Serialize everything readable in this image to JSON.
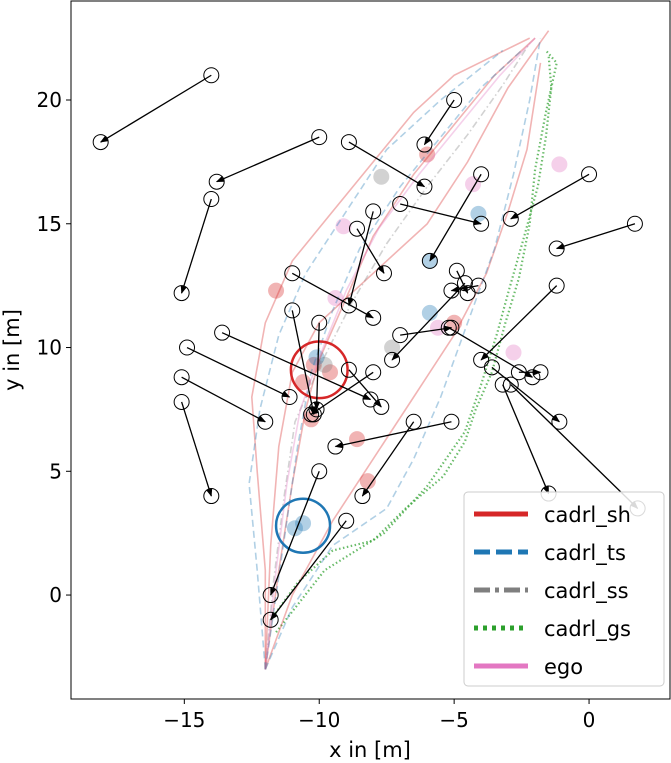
{
  "chart_data": {
    "type": "scatter",
    "xlabel": "x in [m]",
    "ylabel": "y in [m]",
    "xlim": [
      -19.2,
      3.0
    ],
    "ylim": [
      -4.2,
      24.0
    ],
    "xticks": [
      -15,
      -10,
      -5,
      0
    ],
    "yticks": [
      0,
      5,
      10,
      15,
      20
    ],
    "grid": false,
    "legend": {
      "placement": "lower-right",
      "entries": [
        {
          "name": "cadrl_sh",
          "color": "#d62728",
          "style": "solid"
        },
        {
          "name": "cadrl_ts",
          "color": "#1f77b4",
          "style": "dashed"
        },
        {
          "name": "cadrl_ss",
          "color": "#7f7f7f",
          "style": "dashdot"
        },
        {
          "name": "cadrl_gs",
          "color": "#2ca02c",
          "style": "dotted"
        },
        {
          "name": "ego",
          "color": "#e377c2",
          "style": "solid"
        }
      ]
    },
    "agents": [
      {
        "from": [
          -14,
          21
        ],
        "to": [
          -18.1,
          18.3
        ]
      },
      {
        "from": [
          -10,
          18.5
        ],
        "to": [
          -13.8,
          16.7
        ]
      },
      {
        "from": [
          -8.9,
          18.3
        ],
        "to": [
          -6.1,
          16.5
        ]
      },
      {
        "from": [
          -5,
          20
        ],
        "to": [
          -6.1,
          18.2
        ]
      },
      {
        "from": [
          -14,
          16
        ],
        "to": [
          -15.1,
          12.2
        ]
      },
      {
        "from": [
          -7,
          15.8
        ],
        "to": [
          -4,
          15
        ]
      },
      {
        "from": [
          -4,
          17
        ],
        "to": [
          -5.9,
          13.5
        ]
      },
      {
        "from": [
          0,
          17
        ],
        "to": [
          -2.9,
          15.2
        ]
      },
      {
        "from": [
          1.7,
          15
        ],
        "to": [
          -1.2,
          14
        ]
      },
      {
        "from": [
          -8,
          15.5
        ],
        "to": [
          -8.9,
          11.7
        ]
      },
      {
        "from": [
          -8.6,
          14.8
        ],
        "to": [
          -7.6,
          13
        ]
      },
      {
        "from": [
          -11,
          13
        ],
        "to": [
          -8,
          11.2
        ]
      },
      {
        "from": [
          -4.9,
          13.1
        ],
        "to": [
          -4.5,
          12.2
        ]
      },
      {
        "from": [
          -4.1,
          12.5
        ],
        "to": [
          -5.1,
          12.3
        ]
      },
      {
        "from": [
          -11,
          11.5
        ],
        "to": [
          -10.2,
          7.3
        ]
      },
      {
        "from": [
          -13.6,
          10.6
        ],
        "to": [
          -8.1,
          7.9
        ]
      },
      {
        "from": [
          -14.9,
          10
        ],
        "to": [
          -11.1,
          8
        ]
      },
      {
        "from": [
          -10,
          11
        ],
        "to": [
          -10.1,
          7.5
        ]
      },
      {
        "from": [
          -7,
          10.5
        ],
        "to": [
          -5.1,
          10.8
        ]
      },
      {
        "from": [
          -1.2,
          12.5
        ],
        "to": [
          -4,
          9.5
        ]
      },
      {
        "from": [
          -15.1,
          8.8
        ],
        "to": [
          -12,
          7
        ]
      },
      {
        "from": [
          -15.1,
          7.8
        ],
        "to": [
          -14,
          4
        ]
      },
      {
        "from": [
          -8,
          9
        ],
        "to": [
          -10.3,
          7.3
        ]
      },
      {
        "from": [
          -4.6,
          12.6
        ],
        "to": [
          -7.3,
          9.5
        ]
      },
      {
        "from": [
          -5.2,
          10.8
        ],
        "to": [
          -2.1,
          8.8
        ]
      },
      {
        "from": [
          -3.6,
          9.2
        ],
        "to": [
          -1.1,
          7
        ]
      },
      {
        "from": [
          -2.6,
          9
        ],
        "to": [
          -1.8,
          9
        ]
      },
      {
        "from": [
          -8.9,
          9.1
        ],
        "to": [
          -7.7,
          7.6
        ]
      },
      {
        "from": [
          -2.9,
          8.5
        ],
        "to": [
          1.8,
          3.5
        ]
      },
      {
        "from": [
          -3.2,
          8.5
        ],
        "to": [
          -1.5,
          4.1
        ]
      },
      {
        "from": [
          -5.1,
          7
        ],
        "to": [
          -9.4,
          6
        ]
      },
      {
        "from": [
          -6.5,
          7
        ],
        "to": [
          -8.4,
          4
        ]
      },
      {
        "from": [
          -10,
          5
        ],
        "to": [
          -11.8,
          0
        ]
      },
      {
        "from": [
          -9,
          3
        ],
        "to": [
          -11.8,
          -1
        ]
      }
    ],
    "robot_circles": [
      {
        "x": -10,
        "y": 9.1,
        "r": 1.05,
        "color": "#d62728"
      },
      {
        "x": -10.6,
        "y": 2.8,
        "r": 1.0,
        "color": "#1f77b4"
      }
    ],
    "paths": [
      {
        "color": "#2ca02c",
        "style": "dotted",
        "points": [
          [
            -11.8,
            -1
          ],
          [
            -10.8,
            0.5
          ],
          [
            -9.5,
            1.8
          ],
          [
            -8,
            2.2
          ],
          [
            -6.8,
            3.5
          ],
          [
            -5.4,
            4.8
          ],
          [
            -4.6,
            6.2
          ],
          [
            -4.2,
            7.5
          ],
          [
            -3.6,
            9
          ],
          [
            -3.1,
            11
          ],
          [
            -2.6,
            12.8
          ],
          [
            -2.2,
            15
          ],
          [
            -2,
            17.2
          ],
          [
            -1.6,
            19.5
          ],
          [
            -1.2,
            21.5
          ],
          [
            -1.6,
            22
          ]
        ]
      },
      {
        "color": "#2ca02c",
        "style": "dotted",
        "points": [
          [
            -11.6,
            -1.5
          ],
          [
            -9.8,
            1
          ],
          [
            -7.6,
            2.5
          ],
          [
            -6,
            4.4
          ],
          [
            -4.6,
            6.6
          ],
          [
            -4,
            8.5
          ],
          [
            -3.4,
            10.6
          ],
          [
            -3,
            12.2
          ],
          [
            -2.4,
            14.5
          ],
          [
            -1.9,
            16.5
          ],
          [
            -1.6,
            18.5
          ],
          [
            -1.4,
            20.5
          ],
          [
            -1.5,
            21.8
          ]
        ]
      },
      {
        "color": "#d62728",
        "style": "solid",
        "points": [
          [
            -12,
            -3
          ],
          [
            -11.5,
            1
          ],
          [
            -11,
            4.5
          ],
          [
            -10.5,
            7.5
          ],
          [
            -10,
            9.5
          ],
          [
            -9,
            12
          ],
          [
            -8,
            14.5
          ],
          [
            -6.5,
            17
          ],
          [
            -5,
            19
          ],
          [
            -3.5,
            21
          ],
          [
            -2,
            22.5
          ]
        ]
      },
      {
        "color": "#d62728",
        "style": "solid",
        "points": [
          [
            -12,
            -3
          ],
          [
            -12,
            1
          ],
          [
            -12.3,
            5
          ],
          [
            -12.5,
            8
          ],
          [
            -12,
            11
          ],
          [
            -11,
            13.5
          ],
          [
            -9.5,
            15.5
          ],
          [
            -8,
            17.5
          ],
          [
            -6.5,
            19.5
          ],
          [
            -5,
            21
          ],
          [
            -2.2,
            22.5
          ]
        ]
      },
      {
        "color": "#d62728",
        "style": "solid",
        "points": [
          [
            -12,
            -3
          ],
          [
            -11,
            0
          ],
          [
            -9.5,
            3
          ],
          [
            -8,
            5.5
          ],
          [
            -6.5,
            8
          ],
          [
            -5,
            10.5
          ],
          [
            -3.8,
            13
          ],
          [
            -3,
            15.5
          ],
          [
            -2.3,
            18
          ],
          [
            -1.8,
            21.5
          ]
        ]
      },
      {
        "color": "#d62728",
        "style": "solid",
        "points": [
          [
            -12,
            -3
          ],
          [
            -11.8,
            2
          ],
          [
            -11.5,
            6
          ],
          [
            -11,
            9
          ],
          [
            -10,
            11
          ],
          [
            -8,
            13
          ],
          [
            -6,
            15
          ],
          [
            -4.5,
            17.5
          ],
          [
            -3,
            20.5
          ],
          [
            -1.5,
            22.8
          ]
        ]
      },
      {
        "color": "#1f77b4",
        "style": "dashed",
        "points": [
          [
            -12,
            -3
          ],
          [
            -11.6,
            0
          ],
          [
            -11.2,
            3
          ],
          [
            -10.8,
            6
          ],
          [
            -10.3,
            9
          ],
          [
            -9.5,
            11.5
          ],
          [
            -8.5,
            14
          ],
          [
            -7,
            16.5
          ],
          [
            -5.5,
            18.5
          ],
          [
            -4,
            20.5
          ],
          [
            -2.5,
            22
          ]
        ]
      },
      {
        "color": "#1f77b4",
        "style": "dashed",
        "points": [
          [
            -12,
            -3
          ],
          [
            -11,
            -0.5
          ],
          [
            -9.5,
            2
          ],
          [
            -7.5,
            3.5
          ],
          [
            -6.5,
            5.5
          ],
          [
            -5.5,
            8
          ],
          [
            -4.5,
            11
          ],
          [
            -3.5,
            14
          ],
          [
            -2.8,
            17
          ],
          [
            -2.2,
            20
          ],
          [
            -1.8,
            22.5
          ]
        ]
      },
      {
        "color": "#1f77b4",
        "style": "dashed",
        "points": [
          [
            -12,
            -3
          ],
          [
            -12.3,
            1
          ],
          [
            -12.6,
            4.5
          ],
          [
            -12.2,
            7.5
          ],
          [
            -11.5,
            10.5
          ],
          [
            -10.5,
            13
          ],
          [
            -9,
            15.5
          ],
          [
            -7.5,
            18
          ],
          [
            -5.5,
            20
          ],
          [
            -3.2,
            22
          ]
        ]
      },
      {
        "color": "#7f7f7f",
        "style": "dashdot",
        "points": [
          [
            -12,
            -3
          ],
          [
            -11.7,
            0.5
          ],
          [
            -11.3,
            4
          ],
          [
            -10.9,
            7
          ],
          [
            -10,
            9.2
          ],
          [
            -8.8,
            11.8
          ],
          [
            -7.5,
            14.2
          ],
          [
            -6,
            16.5
          ],
          [
            -4.5,
            18.6
          ],
          [
            -3.2,
            20.6
          ],
          [
            -2.2,
            22.3
          ]
        ]
      },
      {
        "color": "#e377c2",
        "style": "solid",
        "points": [
          [
            -12,
            -3
          ],
          [
            -11.6,
            1
          ],
          [
            -11.2,
            4.5
          ],
          [
            -10.7,
            7.5
          ],
          [
            -10,
            9.6
          ],
          [
            -9,
            12.3
          ],
          [
            -7.8,
            14.8
          ],
          [
            -6.3,
            17
          ],
          [
            -4.8,
            19
          ],
          [
            -3.3,
            21
          ],
          [
            -2,
            22.5
          ]
        ]
      }
    ],
    "blobs": [
      {
        "x": -10.2,
        "y": 9.3,
        "color": "#d62728"
      },
      {
        "x": -9.6,
        "y": 9.0,
        "color": "#d62728"
      },
      {
        "x": -10.6,
        "y": 8.6,
        "color": "#d62728"
      },
      {
        "x": -10.3,
        "y": 7.1,
        "color": "#d62728"
      },
      {
        "x": -11.6,
        "y": 12.3,
        "color": "#d62728"
      },
      {
        "x": -9.8,
        "y": 9.3,
        "color": "#7f7f7f"
      },
      {
        "x": -10.1,
        "y": 9.6,
        "color": "#1f77b4"
      },
      {
        "x": -10.6,
        "y": 2.9,
        "color": "#1f77b4"
      },
      {
        "x": -10.9,
        "y": 2.7,
        "color": "#1f77b4"
      },
      {
        "x": -5.9,
        "y": 11.4,
        "color": "#1f77b4"
      },
      {
        "x": -4.1,
        "y": 15.4,
        "color": "#1f77b4"
      },
      {
        "x": -5.9,
        "y": 13.5,
        "color": "#1f77b4"
      },
      {
        "x": -6.0,
        "y": 17.8,
        "color": "#d62728"
      },
      {
        "x": -8.6,
        "y": 6.3,
        "color": "#d62728"
      },
      {
        "x": -8.2,
        "y": 4.6,
        "color": "#d62728"
      },
      {
        "x": -5.0,
        "y": 11.0,
        "color": "#d62728"
      },
      {
        "x": -5.6,
        "y": 10.8,
        "color": "#e377c2"
      },
      {
        "x": -4.3,
        "y": 16.6,
        "color": "#e377c2"
      },
      {
        "x": -1.1,
        "y": 17.4,
        "color": "#e377c2"
      },
      {
        "x": -2.8,
        "y": 9.8,
        "color": "#e377c2"
      },
      {
        "x": -9.1,
        "y": 14.9,
        "color": "#e377c2"
      },
      {
        "x": -7.7,
        "y": 16.9,
        "color": "#7f7f7f"
      },
      {
        "x": -7.3,
        "y": 10.0,
        "color": "#7f7f7f"
      },
      {
        "x": -9.4,
        "y": 12.0,
        "color": "#e377c2"
      }
    ]
  }
}
